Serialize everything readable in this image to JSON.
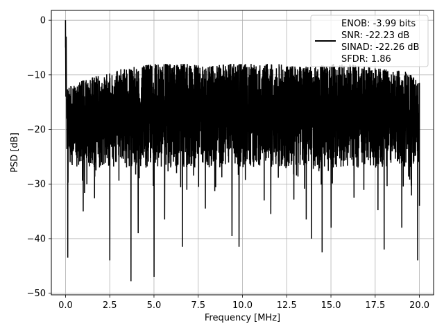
{
  "chart_data": {
    "type": "line",
    "title": "",
    "xlabel": "Frequency [MHz]",
    "ylabel": "PSD [dB]",
    "xlim": [
      -0.8,
      20.8
    ],
    "ylim": [
      -50.3,
      1.8
    ],
    "xticks": [
      0.0,
      2.5,
      5.0,
      7.5,
      10.0,
      12.5,
      15.0,
      17.5,
      20.0
    ],
    "xtick_labels": [
      "0.0",
      "2.5",
      "5.0",
      "7.5",
      "10.0",
      "12.5",
      "15.0",
      "17.5",
      "20.0"
    ],
    "yticks": [
      0,
      -10,
      -20,
      -30,
      -40,
      -50
    ],
    "ytick_labels": [
      "0",
      "−10",
      "−20",
      "−30",
      "−40",
      "−50"
    ],
    "grid": true,
    "legend_position": "top-right",
    "line_color": "#000000",
    "series": [
      {
        "name": "ENOB: -3.99 bits\nSNR: -22.23 dB\nSINAD: -22.26 dB\nSFDR: 1.86",
        "legend_lines": [
          "ENOB: -3.99 bits",
          "SNR: -22.23 dB",
          "SINAD: -22.26 dB",
          "SFDR: 1.86"
        ],
        "x_range": [
          0.0,
          20.0
        ],
        "peak": {
          "x": 0.0,
          "y": 0.0
        },
        "upper_envelope": [
          -12.5,
          -11.0,
          -10.0,
          -9.0,
          -8.5,
          -8.0,
          -8.0,
          -8.0,
          -8.5,
          -8.0,
          -8.0,
          -8.0,
          -8.0,
          -8.5,
          -8.5,
          -8.0,
          -8.0,
          -8.5,
          -9.0,
          -9.0,
          -11.0
        ],
        "typical_band": [
          -27.0,
          -12.0
        ],
        "notable_dips": [
          {
            "x": 0.12,
            "y": -43.5
          },
          {
            "x": 1.0,
            "y": -35.0
          },
          {
            "x": 2.5,
            "y": -44.0
          },
          {
            "x": 3.7,
            "y": -47.8
          },
          {
            "x": 4.1,
            "y": -39.0
          },
          {
            "x": 5.0,
            "y": -47.0
          },
          {
            "x": 5.6,
            "y": -36.5
          },
          {
            "x": 6.6,
            "y": -41.5
          },
          {
            "x": 7.9,
            "y": -34.5
          },
          {
            "x": 9.4,
            "y": -39.5
          },
          {
            "x": 9.8,
            "y": -41.5
          },
          {
            "x": 11.6,
            "y": -35.5
          },
          {
            "x": 13.6,
            "y": -36.5
          },
          {
            "x": 13.9,
            "y": -40.0
          },
          {
            "x": 14.5,
            "y": -42.5
          },
          {
            "x": 15.0,
            "y": -38.0
          },
          {
            "x": 16.3,
            "y": -32.5
          },
          {
            "x": 18.0,
            "y": -42.0
          },
          {
            "x": 19.0,
            "y": -38.0
          },
          {
            "x": 19.9,
            "y": -44.0
          }
        ]
      }
    ]
  }
}
